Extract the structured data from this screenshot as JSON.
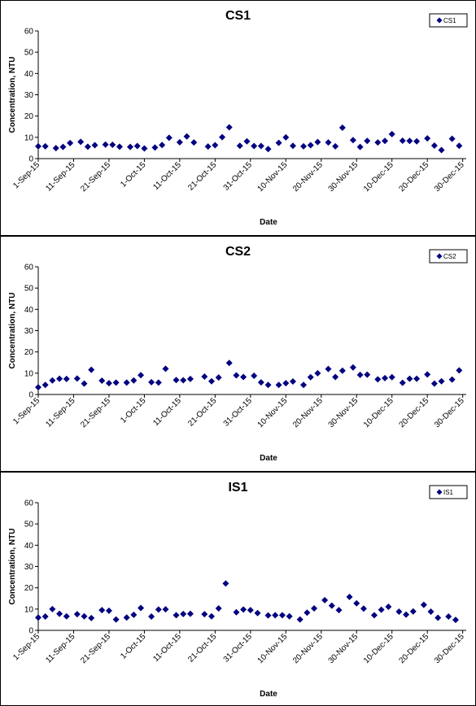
{
  "charts": [
    {
      "type": "scatter",
      "title": "CS1",
      "xlabel": "Date",
      "ylabel": "Concentration, NTU",
      "ylim": [
        0,
        60
      ],
      "yticks": [
        "0",
        "10",
        "20",
        "30",
        "40",
        "50",
        "60"
      ],
      "xticks": [
        "1-Sep-15",
        "11-Sep-15",
        "21-Sep-15",
        "1-Oct-15",
        "11-Oct-15",
        "21-Oct-15",
        "31-Oct-15",
        "10-Nov-15",
        "20-Nov-15",
        "30-Nov-15",
        "10-Dec-15",
        "20-Dec-15",
        "30-Dec-15"
      ],
      "legend": "CS1",
      "legend_position": "top-right",
      "marker_color": "#000080",
      "points": [
        [
          "2015-09-01",
          5.8
        ],
        [
          "2015-09-03",
          5.8
        ],
        [
          "2015-09-06",
          4.9
        ],
        [
          "2015-09-08",
          5.5
        ],
        [
          "2015-09-10",
          7.3
        ],
        [
          "2015-09-13",
          7.9
        ],
        [
          "2015-09-15",
          5.6
        ],
        [
          "2015-09-17",
          6.3
        ],
        [
          "2015-09-20",
          6.6
        ],
        [
          "2015-09-22",
          6.5
        ],
        [
          "2015-09-24",
          5.6
        ],
        [
          "2015-09-27",
          5.5
        ],
        [
          "2015-09-29",
          5.9
        ],
        [
          "2015-10-01",
          4.8
        ],
        [
          "2015-10-04",
          5.2
        ],
        [
          "2015-10-06",
          6.4
        ],
        [
          "2015-10-08",
          9.8
        ],
        [
          "2015-10-11",
          7.7
        ],
        [
          "2015-10-13",
          10.4
        ],
        [
          "2015-10-15",
          7.6
        ],
        [
          "2015-10-19",
          5.7
        ],
        [
          "2015-10-21",
          6.3
        ],
        [
          "2015-10-23",
          10.1
        ],
        [
          "2015-10-25",
          14.7
        ],
        [
          "2015-10-28",
          6.0
        ],
        [
          "2015-10-30",
          8.1
        ],
        [
          "2015-11-01",
          5.9
        ],
        [
          "2015-11-03",
          5.9
        ],
        [
          "2015-11-05",
          4.5
        ],
        [
          "2015-11-08",
          7.4
        ],
        [
          "2015-11-10",
          10.0
        ],
        [
          "2015-11-12",
          6.0
        ],
        [
          "2015-11-15",
          5.8
        ],
        [
          "2015-11-17",
          6.3
        ],
        [
          "2015-11-19",
          7.8
        ],
        [
          "2015-11-22",
          7.6
        ],
        [
          "2015-11-24",
          5.8
        ],
        [
          "2015-11-26",
          14.5
        ],
        [
          "2015-11-29",
          8.7
        ],
        [
          "2015-12-01",
          5.5
        ],
        [
          "2015-12-03",
          8.3
        ],
        [
          "2015-12-06",
          7.6
        ],
        [
          "2015-12-08",
          8.3
        ],
        [
          "2015-12-10",
          11.5
        ],
        [
          "2015-12-13",
          8.4
        ],
        [
          "2015-12-15",
          8.3
        ],
        [
          "2015-12-17",
          8.1
        ],
        [
          "2015-12-20",
          9.5
        ],
        [
          "2015-12-22",
          6.1
        ],
        [
          "2015-12-24",
          4.0
        ],
        [
          "2015-12-27",
          9.3
        ],
        [
          "2015-12-29",
          6.0
        ]
      ]
    },
    {
      "type": "scatter",
      "title": "CS2",
      "xlabel": "Date",
      "ylabel": "Concentration, NTU",
      "ylim": [
        0,
        60
      ],
      "yticks": [
        "0",
        "10",
        "20",
        "30",
        "40",
        "50",
        "60"
      ],
      "xticks": [
        "1-Sep-15",
        "11-Sep-15",
        "21-Sep-15",
        "1-Oct-15",
        "11-Oct-15",
        "21-Oct-15",
        "31-Oct-15",
        "10-Nov-15",
        "20-Nov-15",
        "30-Nov-15",
        "10-Dec-15",
        "20-Dec-15",
        "30-Dec-15"
      ],
      "legend": "CS2",
      "legend_position": "top-right",
      "marker_color": "#000080",
      "points": [
        [
          "2015-09-01",
          3.4
        ],
        [
          "2015-09-03",
          4.5
        ],
        [
          "2015-09-05",
          6.6
        ],
        [
          "2015-09-07",
          7.4
        ],
        [
          "2015-09-09",
          7.3
        ],
        [
          "2015-09-12",
          7.5
        ],
        [
          "2015-09-14",
          5.1
        ],
        [
          "2015-09-16",
          11.6
        ],
        [
          "2015-09-19",
          6.5
        ],
        [
          "2015-09-21",
          5.3
        ],
        [
          "2015-09-23",
          5.6
        ],
        [
          "2015-09-26",
          5.6
        ],
        [
          "2015-09-28",
          6.6
        ],
        [
          "2015-09-30",
          9.1
        ],
        [
          "2015-10-03",
          5.8
        ],
        [
          "2015-10-05",
          5.6
        ],
        [
          "2015-10-07",
          12.1
        ],
        [
          "2015-10-10",
          6.8
        ],
        [
          "2015-10-12",
          6.7
        ],
        [
          "2015-10-14",
          7.3
        ],
        [
          "2015-10-18",
          8.4
        ],
        [
          "2015-10-20",
          6.2
        ],
        [
          "2015-10-22",
          8.0
        ],
        [
          "2015-10-25",
          14.8
        ],
        [
          "2015-10-27",
          9.0
        ],
        [
          "2015-10-29",
          8.2
        ],
        [
          "2015-11-01",
          8.8
        ],
        [
          "2015-11-03",
          5.7
        ],
        [
          "2015-11-05",
          4.5
        ],
        [
          "2015-11-08",
          4.5
        ],
        [
          "2015-11-10",
          5.3
        ],
        [
          "2015-11-12",
          6.1
        ],
        [
          "2015-11-15",
          4.5
        ],
        [
          "2015-11-17",
          8.1
        ],
        [
          "2015-11-19",
          10.0
        ],
        [
          "2015-11-22",
          12.0
        ],
        [
          "2015-11-24",
          8.2
        ],
        [
          "2015-11-26",
          11.2
        ],
        [
          "2015-11-29",
          12.7
        ],
        [
          "2015-12-01",
          9.2
        ],
        [
          "2015-12-03",
          9.3
        ],
        [
          "2015-12-06",
          7.1
        ],
        [
          "2015-12-08",
          7.7
        ],
        [
          "2015-12-10",
          8.1
        ],
        [
          "2015-12-13",
          5.5
        ],
        [
          "2015-12-15",
          7.4
        ],
        [
          "2015-12-17",
          7.4
        ],
        [
          "2015-12-20",
          9.4
        ],
        [
          "2015-12-22",
          5.1
        ],
        [
          "2015-12-24",
          6.2
        ],
        [
          "2015-12-27",
          7.0
        ],
        [
          "2015-12-29",
          11.3
        ]
      ]
    },
    {
      "type": "scatter",
      "title": "IS1",
      "xlabel": "Date",
      "ylabel": "Concentration, NTU",
      "ylim": [
        0,
        60
      ],
      "yticks": [
        "0",
        "10",
        "20",
        "30",
        "40",
        "50",
        "60"
      ],
      "xticks": [
        "1-Sep-15",
        "11-Sep-15",
        "21-Sep-15",
        "1-Oct-15",
        "11-Oct-15",
        "21-Oct-15",
        "31-Oct-15",
        "10-Nov-15",
        "20-Nov-15",
        "30-Nov-15",
        "10-Dec-15",
        "20-Dec-15",
        "30-Dec-15"
      ],
      "legend": "IS1",
      "legend_position": "top-right",
      "marker_color": "#000080",
      "points": [
        [
          "2015-09-01",
          6.0
        ],
        [
          "2015-09-03",
          6.5
        ],
        [
          "2015-09-05",
          10.0
        ],
        [
          "2015-09-07",
          7.8
        ],
        [
          "2015-09-09",
          6.6
        ],
        [
          "2015-09-12",
          7.6
        ],
        [
          "2015-09-14",
          6.6
        ],
        [
          "2015-09-16",
          5.8
        ],
        [
          "2015-09-19",
          9.5
        ],
        [
          "2015-09-21",
          9.2
        ],
        [
          "2015-09-23",
          5.1
        ],
        [
          "2015-09-26",
          6.0
        ],
        [
          "2015-09-28",
          7.3
        ],
        [
          "2015-09-30",
          10.5
        ],
        [
          "2015-10-03",
          6.5
        ],
        [
          "2015-10-05",
          9.8
        ],
        [
          "2015-10-07",
          9.9
        ],
        [
          "2015-10-10",
          7.1
        ],
        [
          "2015-10-12",
          7.7
        ],
        [
          "2015-10-14",
          7.8
        ],
        [
          "2015-10-18",
          7.6
        ],
        [
          "2015-10-20",
          6.6
        ],
        [
          "2015-10-22",
          10.3
        ],
        [
          "2015-10-24",
          22.0
        ],
        [
          "2015-10-27",
          8.5
        ],
        [
          "2015-10-29",
          9.8
        ],
        [
          "2015-10-31",
          9.5
        ],
        [
          "2015-11-02",
          8.1
        ],
        [
          "2015-11-05",
          7.0
        ],
        [
          "2015-11-07",
          7.1
        ],
        [
          "2015-11-09",
          7.1
        ],
        [
          "2015-11-11",
          6.6
        ],
        [
          "2015-11-14",
          5.1
        ],
        [
          "2015-11-16",
          8.3
        ],
        [
          "2015-11-18",
          10.3
        ],
        [
          "2015-11-21",
          14.2
        ],
        [
          "2015-11-23",
          11.6
        ],
        [
          "2015-11-25",
          9.5
        ],
        [
          "2015-11-28",
          15.7
        ],
        [
          "2015-11-30",
          12.7
        ],
        [
          "2015-12-02",
          10.2
        ],
        [
          "2015-12-05",
          7.1
        ],
        [
          "2015-12-07",
          9.7
        ],
        [
          "2015-12-09",
          11.1
        ],
        [
          "2015-12-12",
          8.8
        ],
        [
          "2015-12-14",
          7.4
        ],
        [
          "2015-12-16",
          8.9
        ],
        [
          "2015-12-19",
          12.0
        ],
        [
          "2015-12-21",
          8.8
        ],
        [
          "2015-12-23",
          5.9
        ],
        [
          "2015-12-26",
          6.5
        ],
        [
          "2015-12-28",
          4.9
        ]
      ]
    }
  ]
}
